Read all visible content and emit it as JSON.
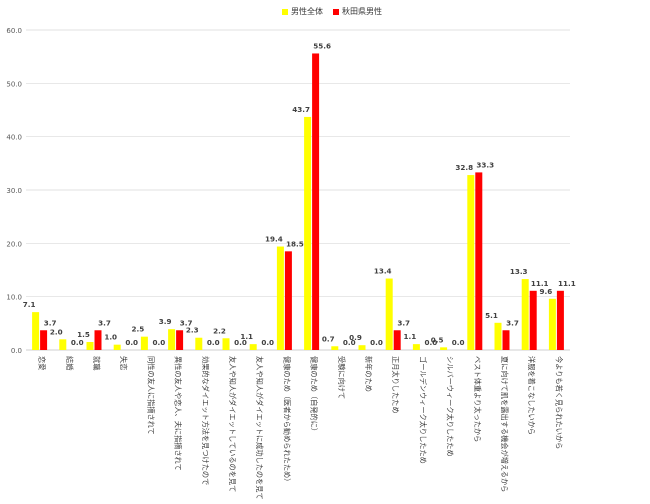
{
  "chart_data": {
    "type": "bar",
    "title": "",
    "xlabel": "",
    "ylabel": "",
    "ylim": [
      0,
      60
    ],
    "yticks": [
      "0.0",
      "10.0",
      "20.0",
      "30.0",
      "40.0",
      "50.0",
      "60.0"
    ],
    "grid": true,
    "legend_position": "top-center",
    "categories": [
      "恋愛",
      "結婚",
      "就職",
      "失恋",
      "同性の友人に指摘されて",
      "異性の友人や恋人、夫に指摘されて",
      "効果的なダイエット方法を見つけたので",
      "友人や知人がダイエットしているのを見て",
      "友人や知人がダイエットに成功したのを見て",
      "健康のため（医者から勧められたため）",
      "健康のため（自発的に）",
      "受験に向けて",
      "新年のため",
      "正月太りしたため",
      "ゴールデンウィーク太りしたため",
      "シルバーウィーク太りしたため",
      "ベスト体重より太ったから",
      "夏に向けて肌を露出する機会が増えるから",
      "洋服を着こなしたいから",
      "今よりも若く見られたいから"
    ],
    "series": [
      {
        "name": "男性全体",
        "color": "#ffff00",
        "values": [
          7.1,
          2.0,
          1.5,
          1.0,
          2.5,
          3.9,
          2.3,
          2.2,
          1.1,
          19.4,
          43.7,
          0.7,
          0.9,
          13.4,
          1.1,
          0.5,
          32.8,
          5.1,
          13.3,
          9.6
        ]
      },
      {
        "name": "秋田県男性",
        "color": "#ff0000",
        "values": [
          3.7,
          0.0,
          3.7,
          0.0,
          0.0,
          3.7,
          0.0,
          0.0,
          0.0,
          18.5,
          55.6,
          0.0,
          0.0,
          3.7,
          0.0,
          0.0,
          33.3,
          3.7,
          11.1,
          11.1
        ]
      }
    ]
  }
}
